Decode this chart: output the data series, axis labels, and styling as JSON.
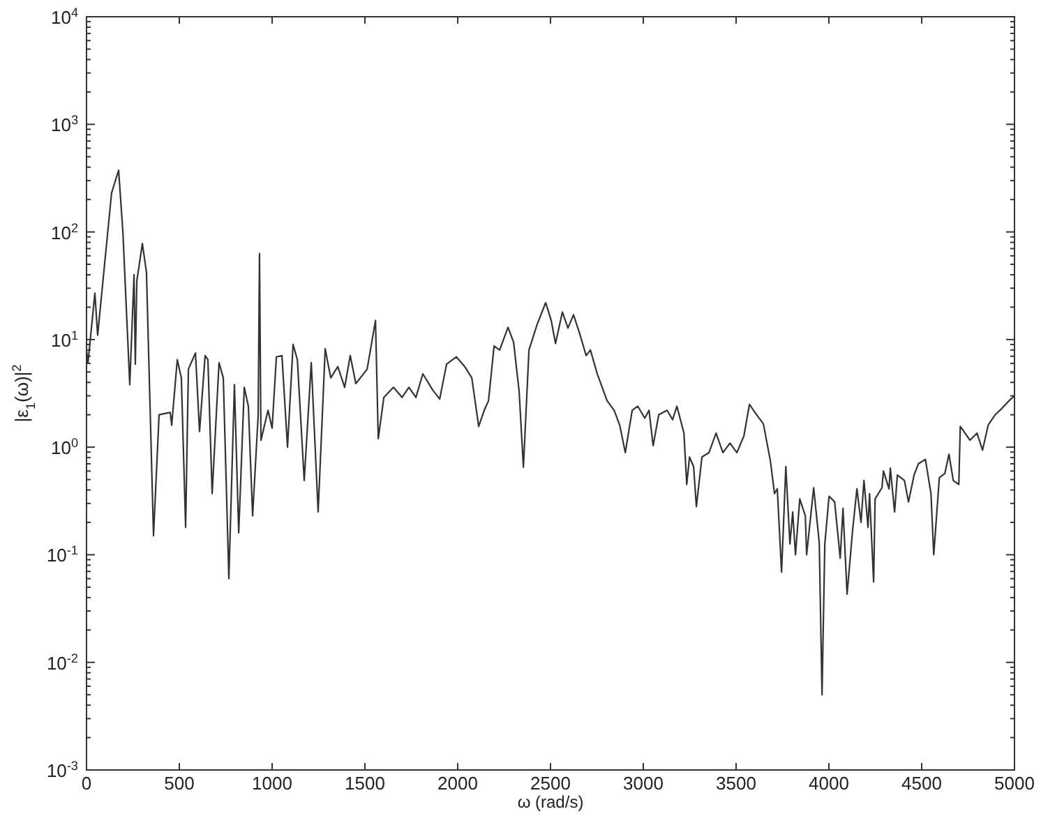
{
  "chart_data": {
    "type": "line",
    "xlabel": "ω (rad/s)",
    "ylabel": "|ε$_{1}$(ω)|$^{2}$",
    "log": "y",
    "grid": false,
    "marker": "none",
    "line_style": "solid",
    "xlim": [
      0,
      5000
    ],
    "xticks": [
      0,
      500,
      1000,
      1500,
      2000,
      2500,
      3000,
      3500,
      4000,
      4500,
      5000
    ],
    "ylim": [
      0.001,
      10000
    ],
    "yticks": [
      {
        "value": 0.001,
        "label": "10$^{-3}$"
      },
      {
        "value": 0.01,
        "label": "10$^{-2}$"
      },
      {
        "value": 0.1,
        "label": "10$^{-1}$"
      },
      {
        "value": 1,
        "label": "10$^{0}$"
      },
      {
        "value": 10,
        "label": "10$^{1}$"
      },
      {
        "value": 100,
        "label": "10$^{2}$"
      },
      {
        "value": 1000,
        "label": "10$^{3}$"
      },
      {
        "value": 10000,
        "label": "10$^{4}$"
      }
    ],
    "x": [
      0,
      8,
      45,
      60,
      135,
      173,
      196,
      233,
      256,
      263,
      271,
      301,
      323,
      361,
      391,
      451,
      459,
      489,
      511,
      534,
      549,
      587,
      609,
      639,
      654,
      677,
      714,
      737,
      767,
      797,
      820,
      850,
      872,
      895,
      925,
      932,
      940,
      978,
      1000,
      1023,
      1053,
      1083,
      1113,
      1136,
      1173,
      1211,
      1248,
      1286,
      1316,
      1354,
      1391,
      1421,
      1451,
      1512,
      1557,
      1572,
      1602,
      1654,
      1700,
      1737,
      1775,
      1812,
      1865,
      1903,
      1940,
      1993,
      2038,
      2076,
      2113,
      2143,
      2166,
      2196,
      2226,
      2271,
      2301,
      2331,
      2354,
      2384,
      2429,
      2474,
      2504,
      2527,
      2564,
      2594,
      2624,
      2655,
      2692,
      2715,
      2752,
      2805,
      2843,
      2873,
      2903,
      2940,
      2970,
      3008,
      3031,
      3053,
      3083,
      3128,
      3158,
      3181,
      3219,
      3234,
      3249,
      3271,
      3286,
      3316,
      3354,
      3392,
      3429,
      3467,
      3504,
      3542,
      3572,
      3610,
      3647,
      3685,
      3707,
      3722,
      3745,
      3768,
      3790,
      3805,
      3820,
      3843,
      3873,
      3880,
      3918,
      3948,
      3963,
      3978,
      4001,
      4031,
      4061,
      4076,
      4098,
      4128,
      4151,
      4173,
      4189,
      4211,
      4219,
      4241,
      4249,
      4286,
      4294,
      4324,
      4331,
      4354,
      4369,
      4407,
      4429,
      4459,
      4482,
      4520,
      4550,
      4565,
      4595,
      4625,
      4647,
      4670,
      4700,
      4708,
      4760,
      4798,
      4828,
      4858,
      4896,
      4933,
      4971,
      5000
    ],
    "series": [
      {
        "color": "#333333",
        "values": [
          8,
          6.1,
          27,
          11,
          230,
          375,
          100,
          3.8,
          40,
          5.9,
          35,
          78,
          42,
          0.15,
          2.0,
          2.1,
          1.6,
          6.5,
          4.4,
          0.18,
          5.3,
          7.5,
          1.4,
          7.1,
          6.5,
          0.37,
          6.1,
          4.4,
          0.06,
          3.8,
          0.16,
          3.6,
          2.4,
          0.23,
          2.0,
          63,
          1.16,
          2.2,
          1.5,
          6.9,
          7.1,
          1.0,
          9,
          6.5,
          0.49,
          6.1,
          0.25,
          8.2,
          4.4,
          5.6,
          3.6,
          7.1,
          3.9,
          5.3,
          15,
          1.2,
          2.9,
          3.6,
          2.9,
          3.6,
          2.9,
          4.8,
          3.4,
          2.8,
          5.9,
          6.9,
          5.6,
          4.4,
          1.56,
          2.2,
          2.7,
          8.7,
          8.0,
          13,
          9.5,
          3.3,
          0.65,
          8.0,
          14,
          22,
          15,
          9.2,
          18,
          12.8,
          17,
          11.7,
          7.1,
          8.0,
          4.8,
          2.7,
          2.2,
          1.6,
          0.89,
          2.2,
          2.4,
          1.86,
          2.2,
          1.03,
          2.0,
          2.2,
          1.8,
          2.4,
          1.35,
          0.45,
          0.81,
          0.66,
          0.28,
          0.81,
          0.89,
          1.35,
          0.89,
          1.09,
          0.89,
          1.27,
          2.5,
          2.0,
          1.65,
          0.74,
          0.37,
          0.41,
          0.069,
          0.66,
          0.126,
          0.25,
          0.1,
          0.33,
          0.23,
          0.1,
          0.42,
          0.13,
          0.005,
          0.126,
          0.35,
          0.31,
          0.093,
          0.27,
          0.043,
          0.17,
          0.41,
          0.2,
          0.49,
          0.18,
          0.37,
          0.056,
          0.33,
          0.42,
          0.6,
          0.41,
          0.64,
          0.25,
          0.55,
          0.49,
          0.31,
          0.55,
          0.7,
          0.77,
          0.37,
          0.1,
          0.52,
          0.57,
          0.86,
          0.49,
          0.45,
          1.56,
          1.16,
          1.35,
          0.94,
          1.6,
          2.0,
          2.3,
          2.7,
          3
        ]
      }
    ]
  }
}
